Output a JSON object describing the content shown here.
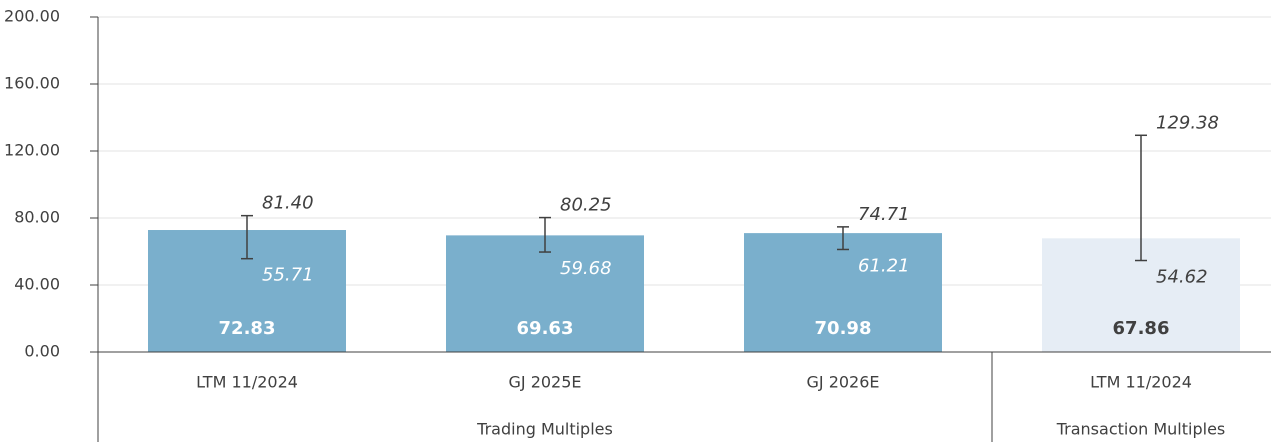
{
  "chart_data": {
    "type": "bar",
    "categories": [
      "LTM 11/2024",
      "GJ 2025E",
      "GJ 2026E",
      "LTM 11/2024"
    ],
    "group_labels": [
      "Trading Multiples",
      "Trading Multiples",
      "Trading Multiples",
      "Transaction Multiples"
    ],
    "series": [
      {
        "values": [
          72.83,
          69.63,
          70.98,
          67.86
        ],
        "colors": [
          "#7aafcc",
          "#7aafcc",
          "#7aafcc",
          "#e6edf5"
        ],
        "high": [
          81.4,
          80.25,
          74.71,
          129.38
        ],
        "high_labels": [
          "81.40",
          "80.25",
          "74.71",
          "129.38"
        ],
        "low": [
          55.71,
          59.68,
          61.21,
          54.62
        ]
      }
    ],
    "ylim": [
      0,
      200
    ],
    "yticks": [
      {
        "value": 0,
        "label": "0.00"
      },
      {
        "value": 40,
        "label": "40.00"
      },
      {
        "value": 80,
        "label": "80.00"
      },
      {
        "value": 120,
        "label": "120.00"
      },
      {
        "value": 160,
        "label": "160.00"
      },
      {
        "value": 200,
        "label": "200.00"
      }
    ],
    "grid": true
  }
}
